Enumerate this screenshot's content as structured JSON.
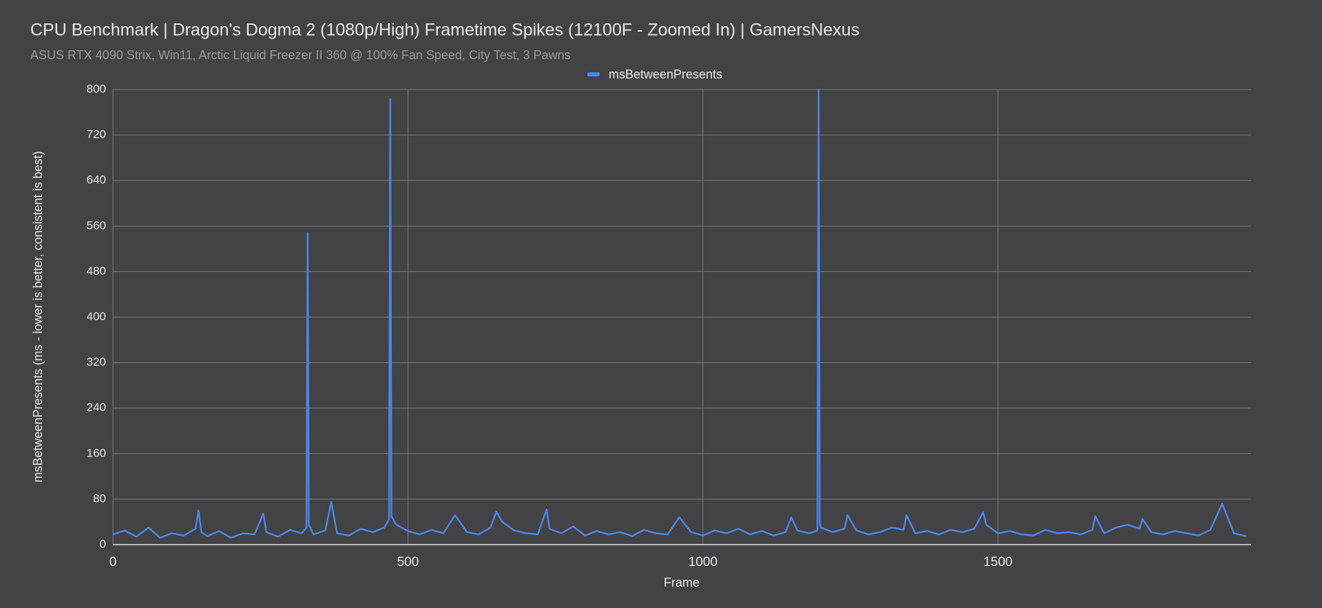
{
  "chart_data": {
    "type": "line",
    "title": "CPU Benchmark | Dragon's Dogma 2 (1080p/High) Frametime Spikes (12100F - Zoomed In) | GamersNexus",
    "subtitle": "ASUS RTX 4090 Strix, Win11, Arctic Liquid Freezer II 360 @ 100% Fan Speed, City Test, 3 Pawns",
    "x_label": "Frame",
    "y_label": "msBetweenPresents (ms - lower is better, consistent is best)",
    "x": [
      0,
      20,
      40,
      60,
      80,
      100,
      120,
      140,
      145,
      150,
      160,
      180,
      200,
      220,
      240,
      255,
      260,
      280,
      300,
      320,
      328,
      330,
      332,
      340,
      360,
      370,
      380,
      400,
      420,
      440,
      460,
      468,
      470,
      472,
      480,
      500,
      520,
      540,
      560,
      580,
      600,
      620,
      640,
      650,
      660,
      680,
      700,
      720,
      735,
      740,
      760,
      780,
      800,
      820,
      840,
      860,
      880,
      900,
      920,
      940,
      960,
      980,
      1000,
      1020,
      1040,
      1060,
      1080,
      1100,
      1120,
      1140,
      1150,
      1160,
      1180,
      1194,
      1196,
      1198,
      1200,
      1220,
      1240,
      1245,
      1260,
      1280,
      1300,
      1320,
      1340,
      1345,
      1360,
      1380,
      1400,
      1420,
      1440,
      1460,
      1475,
      1480,
      1500,
      1520,
      1540,
      1560,
      1580,
      1600,
      1620,
      1640,
      1660,
      1665,
      1680,
      1700,
      1720,
      1740,
      1745,
      1760,
      1780,
      1800,
      1820,
      1840,
      1860,
      1880,
      1900,
      1920
    ],
    "series": [
      {
        "name": "msBetweenPresents",
        "color": "#4a86e8",
        "values": [
          18,
          25,
          14,
          30,
          12,
          20,
          16,
          28,
          60,
          22,
          15,
          24,
          12,
          20,
          18,
          55,
          22,
          14,
          26,
          20,
          30,
          548,
          35,
          18,
          25,
          75,
          20,
          16,
          28,
          22,
          30,
          45,
          783,
          50,
          35,
          24,
          18,
          26,
          20,
          52,
          22,
          18,
          30,
          58,
          40,
          25,
          20,
          18,
          62,
          28,
          20,
          32,
          16,
          24,
          18,
          22,
          15,
          26,
          20,
          18,
          48,
          22,
          16,
          25,
          20,
          28,
          18,
          24,
          16,
          22,
          48,
          25,
          20,
          25,
          800,
          40,
          30,
          22,
          28,
          52,
          25,
          18,
          22,
          30,
          26,
          52,
          20,
          24,
          18,
          26,
          22,
          28,
          57,
          35,
          20,
          24,
          18,
          16,
          26,
          20,
          22,
          18,
          26,
          50,
          20,
          30,
          35,
          28,
          45,
          22,
          18,
          24,
          20,
          16,
          26,
          72,
          20,
          15
        ]
      }
    ],
    "xlim": [
      0,
      1929
    ],
    "xticks": [
      0,
      500,
      1000,
      1500
    ],
    "ylim": [
      0,
      800
    ],
    "yticks": [
      0,
      80,
      160,
      240,
      320,
      400,
      480,
      560,
      640,
      720,
      800
    ],
    "grid": true,
    "legend": "top"
  }
}
